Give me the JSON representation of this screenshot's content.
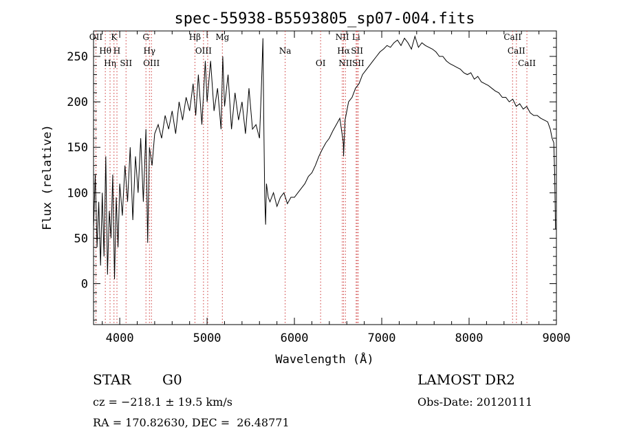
{
  "chart_data": {
    "type": "line",
    "title": "spec-55938-B5593805_sp07-004.fits",
    "xlabel": "Wavelength (Å)",
    "ylabel": "Flux (relative)",
    "xlim": [
      3700,
      9000
    ],
    "ylim": [
      -45,
      278
    ],
    "x_ticks": [
      4000,
      5000,
      6000,
      7000,
      8000,
      9000
    ],
    "y_ticks": [
      0,
      50,
      100,
      150,
      200,
      250
    ],
    "grid": false,
    "line_color": "#000000",
    "marker_color": "#cc3333",
    "series": [
      {
        "x": [
          3700,
          3720,
          3740,
          3760,
          3780,
          3800,
          3820,
          3840,
          3860,
          3880,
          3900,
          3920,
          3940,
          3960,
          3980,
          4000,
          4030,
          4060,
          4090,
          4120,
          4150,
          4180,
          4210,
          4240,
          4270,
          4300,
          4320,
          4340,
          4370,
          4400,
          4440,
          4480,
          4520,
          4560,
          4600,
          4640,
          4680,
          4720,
          4760,
          4800,
          4840,
          4870,
          4900,
          4940,
          4980,
          5000,
          5040,
          5080,
          5120,
          5160,
          5180,
          5200,
          5240,
          5280,
          5320,
          5360,
          5400,
          5440,
          5480,
          5520,
          5560,
          5600,
          5620,
          5640,
          5650,
          5660,
          5670,
          5680,
          5700,
          5720,
          5760,
          5800,
          5840,
          5880,
          5920,
          5960,
          6000,
          6040,
          6080,
          6120,
          6160,
          6200,
          6240,
          6280,
          6320,
          6360,
          6400,
          6440,
          6480,
          6520,
          6560,
          6563,
          6580,
          6620,
          6660,
          6700,
          6740,
          6780,
          6820,
          6860,
          6900,
          6940,
          6980,
          7020,
          7060,
          7100,
          7140,
          7180,
          7220,
          7260,
          7300,
          7340,
          7380,
          7420,
          7460,
          7500,
          7540,
          7580,
          7620,
          7660,
          7700,
          7740,
          7780,
          7820,
          7860,
          7900,
          7940,
          7980,
          8020,
          8060,
          8100,
          8140,
          8180,
          8220,
          8260,
          8300,
          8340,
          8380,
          8420,
          8460,
          8500,
          8540,
          8580,
          8620,
          8660,
          8700,
          8740,
          8780,
          8820,
          8860,
          8900,
          8930,
          8950,
          8970,
          8980,
          8990
        ],
        "y": [
          60,
          120,
          40,
          90,
          20,
          100,
          30,
          140,
          10,
          80,
          50,
          120,
          5,
          95,
          40,
          110,
          75,
          130,
          90,
          150,
          70,
          140,
          100,
          160,
          90,
          170,
          45,
          150,
          130,
          165,
          175,
          160,
          185,
          170,
          190,
          165,
          200,
          180,
          205,
          190,
          220,
          185,
          230,
          175,
          245,
          200,
          245,
          190,
          215,
          170,
          250,
          195,
          230,
          170,
          210,
          180,
          200,
          165,
          215,
          170,
          175,
          160,
          210,
          270,
          175,
          95,
          65,
          110,
          95,
          90,
          100,
          85,
          95,
          100,
          88,
          95,
          95,
          100,
          105,
          110,
          118,
          122,
          130,
          140,
          148,
          155,
          160,
          168,
          175,
          182,
          155,
          140,
          180,
          200,
          205,
          215,
          220,
          230,
          235,
          240,
          245,
          250,
          255,
          258,
          262,
          260,
          265,
          268,
          262,
          270,
          265,
          258,
          272,
          260,
          265,
          262,
          260,
          258,
          255,
          250,
          250,
          245,
          242,
          240,
          238,
          236,
          232,
          230,
          232,
          225,
          228,
          222,
          220,
          218,
          215,
          212,
          210,
          205,
          205,
          200,
          203,
          195,
          198,
          192,
          195,
          188,
          185,
          185,
          182,
          180,
          178,
          170,
          160,
          155,
          120,
          60
        ]
      }
    ],
    "lines": [
      {
        "x": 3727,
        "labels": [
          "OII"
        ]
      },
      {
        "x": 3835,
        "labels": [
          "Hθ"
        ]
      },
      {
        "x": 3889,
        "labels": [
          "Hη"
        ]
      },
      {
        "x": 3934,
        "labels": [
          "K"
        ]
      },
      {
        "x": 3968,
        "labels": [
          "H"
        ]
      },
      {
        "x": 4072,
        "labels": [
          "SII"
        ]
      },
      {
        "x": 4300,
        "labels": [
          "G"
        ]
      },
      {
        "x": 4340,
        "labels": [
          "Hγ"
        ]
      },
      {
        "x": 4363,
        "labels": [
          "OIII"
        ]
      },
      {
        "x": 4861,
        "labels": [
          "Hβ"
        ]
      },
      {
        "x": 4959,
        "labels": [
          "OIII"
        ]
      },
      {
        "x": 5007,
        "labels": []
      },
      {
        "x": 5175,
        "labels": [
          "Mg"
        ]
      },
      {
        "x": 5894,
        "labels": [
          "Na"
        ]
      },
      {
        "x": 6300,
        "labels": [
          "OI"
        ]
      },
      {
        "x": 6548,
        "labels": [
          "NII"
        ]
      },
      {
        "x": 6563,
        "labels": [
          "Hα"
        ]
      },
      {
        "x": 6584,
        "labels": [
          "NII"
        ]
      },
      {
        "x": 6707,
        "labels": [
          "Li"
        ]
      },
      {
        "x": 6717,
        "labels": [
          "SII"
        ]
      },
      {
        "x": 6731,
        "labels": [
          "SII"
        ]
      },
      {
        "x": 8498,
        "labels": [
          "CaII"
        ]
      },
      {
        "x": 8542,
        "labels": [
          "CaII"
        ]
      },
      {
        "x": 8662,
        "labels": [
          "CaII"
        ]
      }
    ]
  },
  "footer": {
    "object_class": "STAR",
    "subclass": "G0",
    "survey": "LAMOST DR2",
    "cz": "cz = −218.1 ± 19.5 km/s",
    "obs_date": "Obs-Date: 20120111",
    "coords": "RA = 170.82630, DEC =  26.48771"
  }
}
